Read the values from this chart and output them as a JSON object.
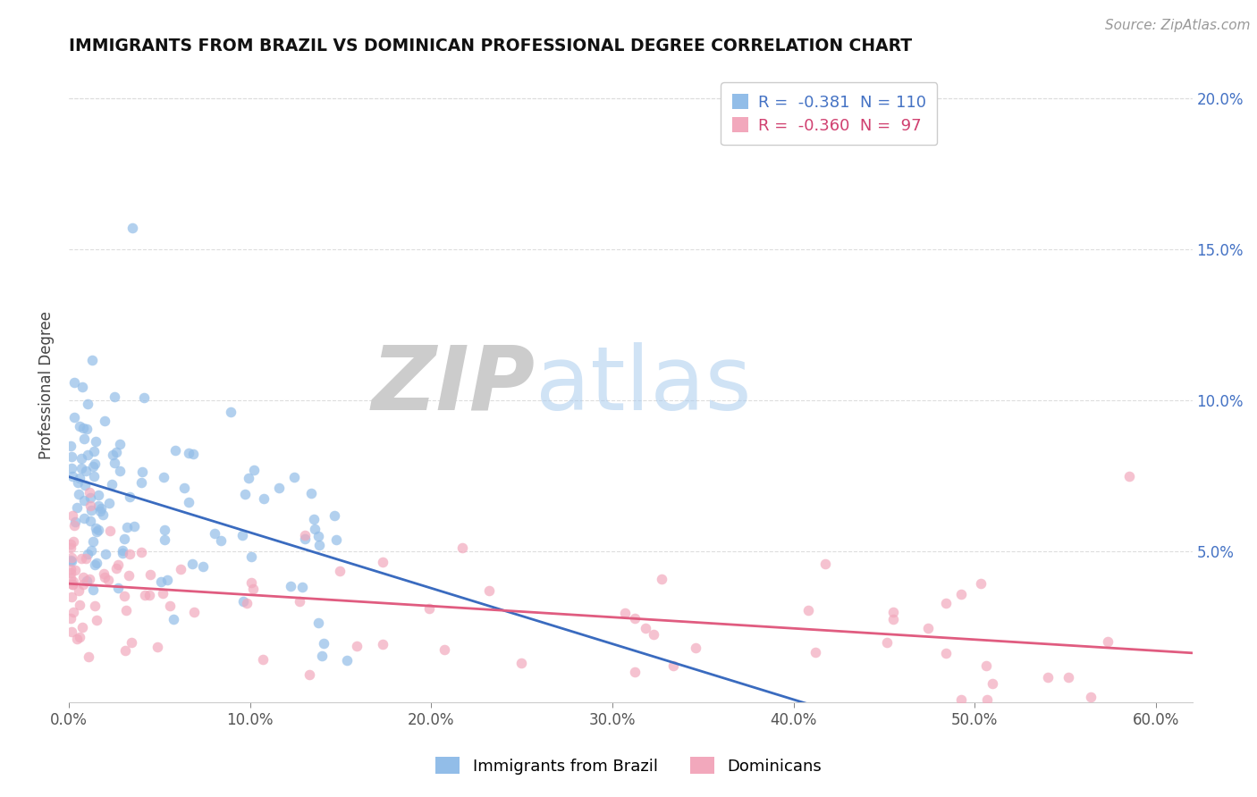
{
  "title": "IMMIGRANTS FROM BRAZIL VS DOMINICAN PROFESSIONAL DEGREE CORRELATION CHART",
  "source_text": "Source: ZipAtlas.com",
  "ylabel": "Professional Degree",
  "xlim": [
    0.0,
    0.62
  ],
  "ylim": [
    0.0,
    0.21
  ],
  "brazil_color": "#92BDE8",
  "dominican_color": "#F2A8BC",
  "brazil_R": -0.381,
  "brazil_N": 110,
  "dominican_R": -0.36,
  "dominican_N": 97,
  "brazil_line_color": "#3A6BBF",
  "dominican_line_color": "#E05C80",
  "right_tick_color": "#4472C4",
  "watermark_zip": "ZIP",
  "watermark_atlas": "atlas",
  "legend_label_brazil": "Immigrants from Brazil",
  "legend_label_dominican": "Dominicans"
}
